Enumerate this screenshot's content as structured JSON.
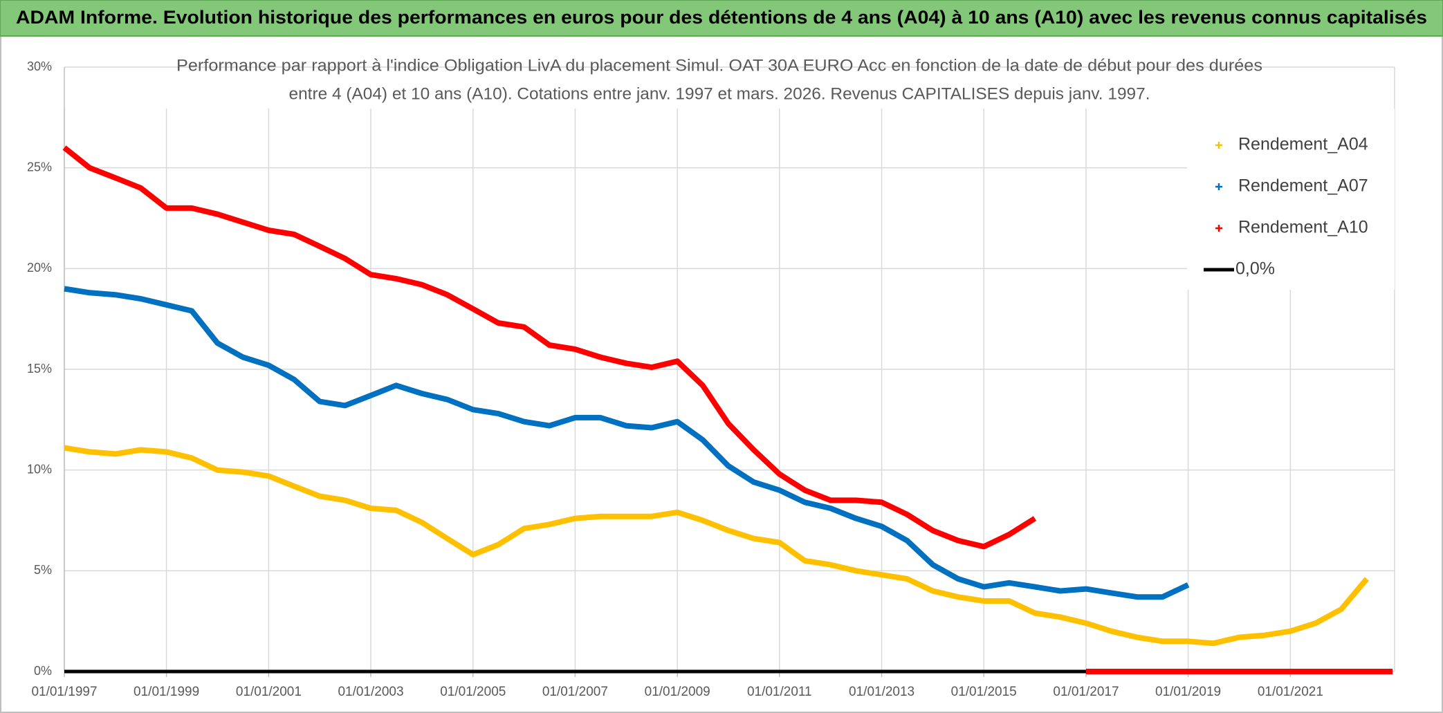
{
  "page_title": "ADAM Informe. Evolution historique des performances en euros pour des détentions de 4 ans (A04) à 10 ans (A10) avec les revenus connus capitalisés",
  "chart_data": {
    "type": "line",
    "title": [
      "Performance par rapport à l'indice Obligation LivA  du placement Simul. OAT 30A EURO Acc en fonction de la date de début pour des durées",
      "entre 4 (A04) et 10 ans (A10). Cotations entre janv. 1997 et mars. 2026. Revenus CAPITALISES depuis janv. 1997."
    ],
    "x": [
      "1997-01-01",
      "1997-07-01",
      "1998-01-01",
      "1998-07-01",
      "1999-01-01",
      "1999-07-01",
      "2000-01-01",
      "2000-07-01",
      "2001-01-01",
      "2001-07-01",
      "2002-01-01",
      "2002-07-01",
      "2003-01-01",
      "2003-07-01",
      "2004-01-01",
      "2004-07-01",
      "2005-01-01",
      "2005-07-01",
      "2006-01-01",
      "2006-07-01",
      "2007-01-01",
      "2007-07-01",
      "2008-01-01",
      "2008-07-01",
      "2009-01-01",
      "2009-07-01",
      "2010-01-01",
      "2010-07-01",
      "2011-01-01",
      "2011-07-01",
      "2012-01-01",
      "2012-07-01",
      "2013-01-01",
      "2013-07-01",
      "2014-01-01",
      "2014-07-01",
      "2015-01-01",
      "2015-07-01",
      "2016-01-01",
      "2016-07-01",
      "2017-01-01",
      "2017-07-01",
      "2018-01-01",
      "2018-07-01",
      "2019-01-01",
      "2019-07-01",
      "2020-01-01",
      "2020-07-01",
      "2021-01-01",
      "2021-07-01",
      "2022-01-01",
      "2022-07-01",
      "2023-01-01"
    ],
    "series": [
      {
        "name": "0,0%",
        "color": "#000000",
        "values": [
          0,
          0,
          0,
          0,
          0,
          0,
          0,
          0,
          0,
          0,
          0,
          0,
          0,
          0,
          0,
          0,
          0,
          0,
          0,
          0,
          0,
          0,
          0,
          0,
          0,
          0,
          0,
          0,
          0,
          0,
          0,
          0,
          0,
          0,
          0,
          0,
          0,
          0,
          0,
          0,
          0,
          0,
          0,
          0,
          0,
          0,
          0,
          0,
          0,
          0,
          0,
          0,
          0
        ]
      },
      {
        "name": "Rendement_A04",
        "color": "#ffc000",
        "values": [
          11.1,
          10.9,
          10.8,
          11.0,
          10.9,
          10.6,
          10.0,
          9.9,
          9.7,
          9.2,
          8.7,
          8.5,
          8.1,
          8.0,
          7.4,
          6.6,
          5.8,
          6.3,
          7.1,
          7.3,
          7.6,
          7.7,
          7.7,
          7.7,
          7.9,
          7.5,
          7.0,
          6.6,
          6.4,
          5.5,
          5.3,
          5.0,
          4.8,
          4.6,
          4.0,
          3.7,
          3.5,
          3.5,
          2.9,
          2.7,
          2.4,
          2.0,
          1.7,
          1.5,
          1.5,
          1.4,
          1.7,
          1.8,
          2.0,
          2.4,
          3.1,
          4.6,
          null
        ]
      },
      {
        "name": "Rendement_A07",
        "color": "#0070c0",
        "values": [
          19.0,
          18.8,
          18.7,
          18.5,
          18.2,
          17.9,
          16.3,
          15.6,
          15.2,
          14.5,
          13.4,
          13.2,
          13.7,
          14.2,
          13.8,
          13.5,
          13.0,
          12.8,
          12.4,
          12.2,
          12.6,
          12.6,
          12.2,
          12.1,
          12.4,
          11.5,
          10.2,
          9.4,
          9.0,
          8.4,
          8.1,
          7.6,
          7.2,
          6.5,
          5.3,
          4.6,
          4.2,
          4.4,
          4.2,
          4.0,
          4.1,
          3.9,
          3.7,
          3.7,
          4.3,
          null,
          0,
          0,
          0,
          0,
          0,
          0,
          0
        ]
      },
      {
        "name": "Rendement_A10",
        "color": "#ff0000",
        "values": [
          26.0,
          25.0,
          24.5,
          24.0,
          23.0,
          23.0,
          22.7,
          22.3,
          21.9,
          21.7,
          21.1,
          20.5,
          19.7,
          19.5,
          19.2,
          18.7,
          18.0,
          17.3,
          17.1,
          16.2,
          16.0,
          15.6,
          15.3,
          15.1,
          15.4,
          14.2,
          12.3,
          11.0,
          9.8,
          9.0,
          8.5,
          8.5,
          8.4,
          7.8,
          7.0,
          6.5,
          6.2,
          6.8,
          7.6,
          null,
          0,
          0,
          0,
          0,
          0,
          0,
          0,
          0,
          0,
          0,
          0,
          0,
          0
        ]
      }
    ],
    "legend_order": [
      1,
      2,
      3,
      0
    ],
    "xlim": [
      "1997-01-01",
      "2023-01-16"
    ],
    "xticks": [
      {
        "value": "1997-01-01",
        "label": "01/01/1997"
      },
      {
        "value": "1999-01-01",
        "label": "01/01/1999"
      },
      {
        "value": "2001-01-01",
        "label": "01/01/2001"
      },
      {
        "value": "2003-01-01",
        "label": "01/01/2003"
      },
      {
        "value": "2005-01-01",
        "label": "01/01/2005"
      },
      {
        "value": "2007-01-01",
        "label": "01/01/2007"
      },
      {
        "value": "2009-01-01",
        "label": "01/01/2009"
      },
      {
        "value": "2011-01-01",
        "label": "01/01/2011"
      },
      {
        "value": "2013-01-01",
        "label": "01/01/2013"
      },
      {
        "value": "2015-01-01",
        "label": "01/01/2015"
      },
      {
        "value": "2017-01-01",
        "label": "01/01/2017"
      },
      {
        "value": "2019-01-01",
        "label": "01/01/2019"
      },
      {
        "value": "2021-01-01",
        "label": "01/01/2021"
      }
    ],
    "ylim": [
      0,
      30
    ],
    "yticks": [
      {
        "value": 0,
        "label": "0%"
      },
      {
        "value": 5,
        "label": "5%"
      },
      {
        "value": 10,
        "label": "10%"
      },
      {
        "value": 15,
        "label": "15%"
      },
      {
        "value": 20,
        "label": "20%"
      },
      {
        "value": 25,
        "label": "25%"
      },
      {
        "value": 30,
        "label": "30%"
      }
    ],
    "grid": true,
    "legend": "upper right"
  }
}
